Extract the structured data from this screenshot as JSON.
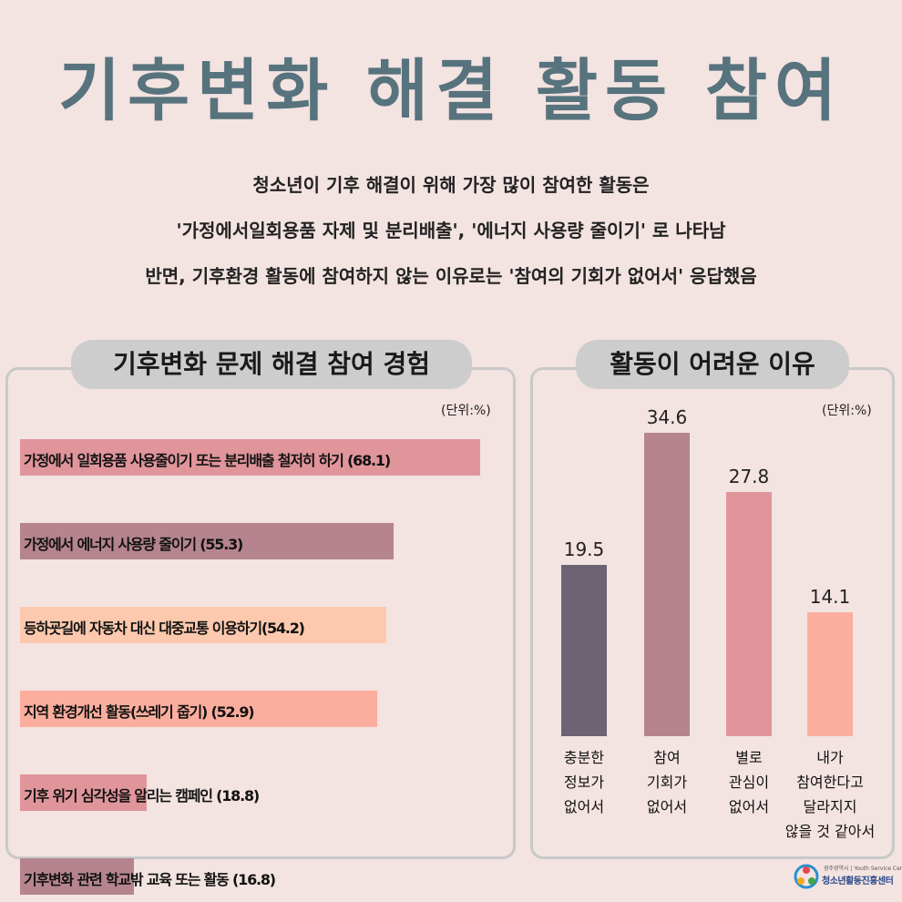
{
  "title": "기후변화 해결 활동 참여",
  "intro": [
    "청소년이 기후 해결이 위해 가장 많이 참여한 활동은",
    "'가정에서일회용품 자제 및 분리배출', '에너지 사용량 줄이기' 로 나타남",
    "반면, 기후환경 활동에 참여하지 않는 이유로는 '참여의 기회가 없어서' 응답했음"
  ],
  "left_panel": {
    "title": "기후변화 문제 해결 참여 경험",
    "unit": "(단위:%)"
  },
  "right_panel": {
    "title": "활동이 어려운 이유",
    "unit": "(단위:%)"
  },
  "logo": {
    "small": "광주광역시 | Youth Service Center",
    "name": "청소년활동진흥센터"
  },
  "chart_data": [
    {
      "type": "bar",
      "orientation": "horizontal",
      "categories": [
        "가정에서 일회용품 사용줄이기 또는 분리배출 철저히 하기 (68.1)",
        "가정에서 에너지 사용량 줄이기 (55.3)",
        "등하굣길에 자동차 대신 대중교통 이용하기(54.2)",
        "지역 환경개선 활동(쓰레기 줍기) (52.9)",
        "기후 위기 심각성을 알리는 캠페인 (18.8)",
        "기후변화 관련 학교밖 교육 또는 활동 (16.8)"
      ],
      "values": [
        68.1,
        55.3,
        54.2,
        52.9,
        18.8,
        16.8
      ],
      "colors": [
        "#e0959b",
        "#b5848f",
        "#fcc9ae",
        "#fbae9e",
        "#e0959b",
        "#b5848f"
      ],
      "xlim": [
        0,
        68.1
      ]
    },
    {
      "type": "bar",
      "orientation": "vertical",
      "categories": [
        "충분한\n정보가\n없어서",
        "참여\n기회가\n없어서",
        "별로\n관심이\n없어서",
        "내가\n참여한다고\n달라지지\n않을 것 같아서"
      ],
      "values": [
        19.5,
        34.6,
        27.8,
        14.1
      ],
      "value_labels": [
        "19.5",
        "34.6",
        "27.8",
        "14.1"
      ],
      "colors": [
        "#6c6472",
        "#b5848f",
        "#e0959b",
        "#fbae9e"
      ],
      "ylim": [
        0,
        34.6
      ]
    }
  ]
}
